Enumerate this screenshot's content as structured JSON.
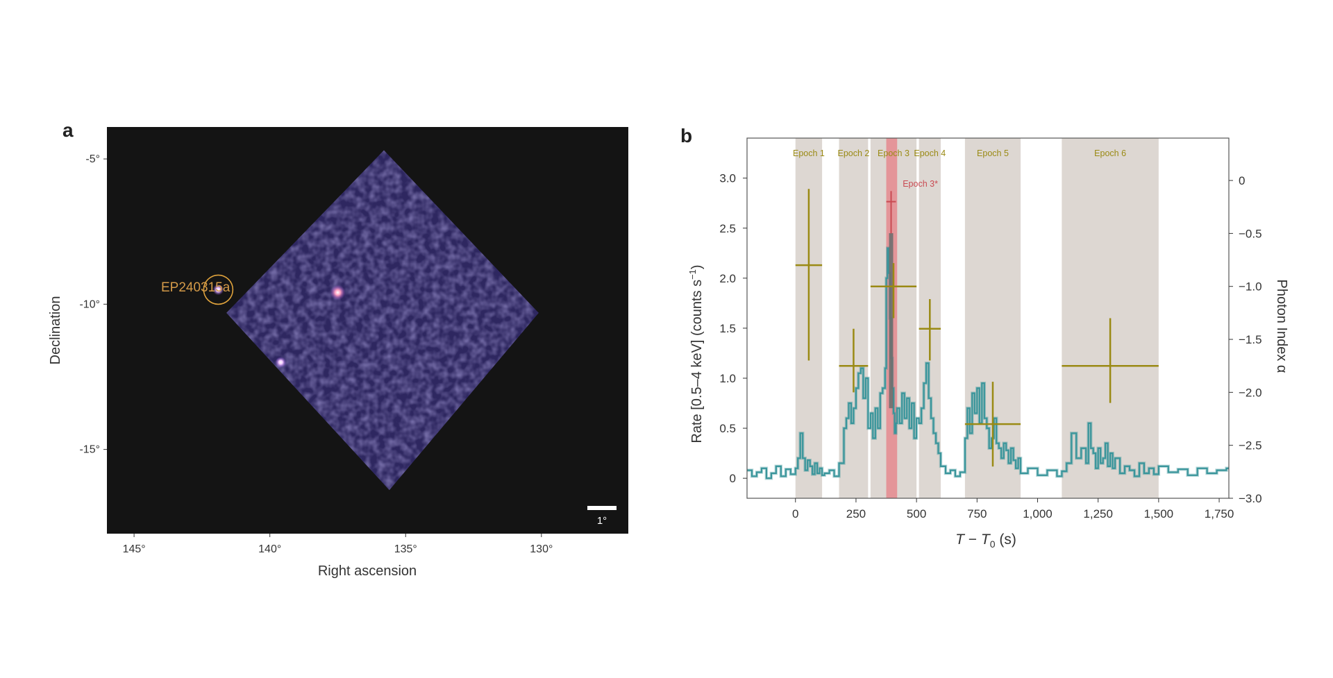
{
  "chart_data": [
    {
      "type": "heatmap",
      "panel": "a",
      "xlabel": "Right ascension",
      "ylabel": "Declination",
      "xlim": [
        146,
        126.8
      ],
      "ylim": [
        -17.9,
        -3.9
      ],
      "xticks": [
        145,
        140,
        135,
        130
      ],
      "xtick_labels": [
        "145°",
        "140°",
        "135°",
        "130°"
      ],
      "yticks": [
        -5,
        -10,
        -15
      ],
      "ytick_labels": [
        "-5°",
        "-10°",
        "-15°"
      ],
      "source_label": "EP240315a",
      "source_position": [
        141.9,
        -9.5
      ],
      "bright_sources": [
        [
          141.9,
          -9.5
        ],
        [
          137.5,
          -9.6
        ],
        [
          139.6,
          -12.0
        ]
      ],
      "scale_bar_label": "1°",
      "scale_bar_length_deg": 1,
      "field_corners": [
        [
          135.8,
          -4.7
        ],
        [
          130.1,
          -10.3
        ],
        [
          135.6,
          -16.4
        ],
        [
          141.6,
          -10.3
        ]
      ],
      "colors": {
        "background": "#141414",
        "field": "#2e2760",
        "source_circle": "#e0a33c",
        "source_label": "#d49a48"
      }
    },
    {
      "type": "line",
      "panel": "b",
      "xlabel": "T − T0 (s)",
      "xlabel_parts": {
        "T": "T",
        "minus": " − ",
        "T0": "T",
        "sub": "0",
        "unit": " (s)"
      },
      "ylabel": "Rate [0.5–4 keV] (counts s",
      "ylabel_exp": "−1",
      "ylabel_end": ")",
      "y2label": "Photon Index α",
      "xlim": [
        -200,
        1790
      ],
      "ylim": [
        -0.2,
        3.4
      ],
      "y2lim": [
        -3.0,
        0.4
      ],
      "xticks": [
        0,
        250,
        500,
        750,
        1000,
        1250,
        1500,
        1750
      ],
      "xtick_labels": [
        "0",
        "250",
        "500",
        "750",
        "1,000",
        "1,250",
        "1,500",
        "1,750"
      ],
      "yticks": [
        0,
        0.5,
        1.0,
        1.5,
        2.0,
        2.5,
        3.0
      ],
      "ytick_labels": [
        "0",
        "0.5",
        "1.0",
        "1.5",
        "2.0",
        "2.5",
        "3.0"
      ],
      "y2ticks": [
        0,
        -0.5,
        -1.0,
        -1.5,
        -2.0,
        -2.5,
        -3.0
      ],
      "y2tick_labels": [
        "0",
        "−0.5",
        "−1.0",
        "−1.5",
        "−2.0",
        "−2.5",
        "−3.0"
      ],
      "epochs": [
        {
          "label": "Epoch 1",
          "start": 0,
          "end": 110
        },
        {
          "label": "Epoch 2",
          "start": 180,
          "end": 300
        },
        {
          "label": "Epoch 3",
          "start": 310,
          "end": 500
        },
        {
          "label": "Epoch 4",
          "start": 510,
          "end": 600
        },
        {
          "label": "Epoch 5",
          "start": 700,
          "end": 930
        },
        {
          "label": "Epoch 6",
          "start": 1100,
          "end": 1500
        }
      ],
      "highlight_epoch": {
        "label": "Epoch 3*",
        "start": 375,
        "end": 420
      },
      "photon_index": [
        {
          "x": 55,
          "xerr": 55,
          "y": -0.8,
          "y_lo": -1.7,
          "y_hi": -0.08
        },
        {
          "x": 240,
          "xerr": 60,
          "y": -1.75,
          "y_lo": -2.0,
          "y_hi": -1.4
        },
        {
          "x": 405,
          "xerr": 95,
          "y": -1.0,
          "y_lo": -1.3,
          "y_hi": -0.78
        },
        {
          "x": 555,
          "xerr": 45,
          "y": -1.4,
          "y_lo": -1.7,
          "y_hi": -1.12
        },
        {
          "x": 815,
          "xerr": 115,
          "y": -2.3,
          "y_lo": -2.7,
          "y_hi": -1.9
        },
        {
          "x": 1300,
          "xerr": 200,
          "y": -1.75,
          "y_lo": -2.1,
          "y_hi": -1.3
        }
      ],
      "photon_index_3star": {
        "x": 395,
        "xerr": 20,
        "y": -0.2,
        "y_lo": -0.5,
        "y_hi": -0.1
      },
      "light_curve": {
        "x": [
          -200,
          -180,
          -160,
          -140,
          -120,
          -100,
          -80,
          -60,
          -40,
          -20,
          0,
          10,
          20,
          30,
          40,
          50,
          60,
          70,
          80,
          90,
          100,
          110,
          120,
          140,
          160,
          180,
          200,
          210,
          220,
          230,
          240,
          250,
          260,
          270,
          280,
          290,
          300,
          310,
          320,
          330,
          340,
          350,
          360,
          370,
          375,
          380,
          385,
          390,
          395,
          400,
          405,
          410,
          415,
          420,
          430,
          440,
          450,
          460,
          470,
          480,
          490,
          500,
          510,
          520,
          530,
          540,
          550,
          560,
          570,
          580,
          590,
          600,
          620,
          640,
          660,
          680,
          700,
          710,
          720,
          730,
          740,
          750,
          760,
          770,
          780,
          790,
          800,
          810,
          820,
          830,
          840,
          850,
          860,
          870,
          880,
          890,
          900,
          910,
          920,
          930,
          960,
          1000,
          1040,
          1080,
          1100,
          1120,
          1140,
          1160,
          1180,
          1200,
          1210,
          1220,
          1230,
          1240,
          1250,
          1260,
          1270,
          1280,
          1290,
          1300,
          1310,
          1320,
          1340,
          1360,
          1380,
          1400,
          1420,
          1440,
          1460,
          1480,
          1500,
          1540,
          1580,
          1620,
          1660,
          1700,
          1740,
          1780
        ],
        "y": [
          0.08,
          0.02,
          0.06,
          0.1,
          0.0,
          0.05,
          0.12,
          0.02,
          0.09,
          0.04,
          0.1,
          0.2,
          0.45,
          0.2,
          0.08,
          0.18,
          0.12,
          0.04,
          0.15,
          0.05,
          0.1,
          0.03,
          0.05,
          0.08,
          0.02,
          0.15,
          0.5,
          0.6,
          0.75,
          0.55,
          0.7,
          0.9,
          1.05,
          1.1,
          0.8,
          1.0,
          0.5,
          0.65,
          0.4,
          0.7,
          0.5,
          0.85,
          0.9,
          1.1,
          2.0,
          2.3,
          2.05,
          1.6,
          1.2,
          0.9,
          0.65,
          0.45,
          0.55,
          0.7,
          0.55,
          0.85,
          0.6,
          0.8,
          0.5,
          0.75,
          0.4,
          0.6,
          0.55,
          0.7,
          0.95,
          1.15,
          0.8,
          0.6,
          0.45,
          0.35,
          0.25,
          0.12,
          0.05,
          0.08,
          0.02,
          0.06,
          0.4,
          0.7,
          0.45,
          0.85,
          0.65,
          0.9,
          0.55,
          0.95,
          0.6,
          0.5,
          0.3,
          0.4,
          0.6,
          0.35,
          0.3,
          0.2,
          0.35,
          0.28,
          0.15,
          0.3,
          0.18,
          0.1,
          0.2,
          0.05,
          0.1,
          0.03,
          0.08,
          0.02,
          0.07,
          0.15,
          0.45,
          0.2,
          0.3,
          0.15,
          0.55,
          0.3,
          0.25,
          0.1,
          0.3,
          0.15,
          0.2,
          0.35,
          0.12,
          0.25,
          0.1,
          0.2,
          0.05,
          0.12,
          0.08,
          0.02,
          0.15,
          0.05,
          0.1,
          0.04,
          0.12,
          0.06,
          0.09,
          0.03,
          0.1,
          0.05,
          0.08,
          0.1
        ]
      },
      "colors": {
        "epoch_band": "#ddd7d2",
        "highlight_band": "#e58a8f",
        "photon_index": "#9a8a14",
        "photon_index_3star": "#c94a52",
        "light_curve": "#3f9aa0",
        "light_curve_fill": "#2f8c92"
      }
    }
  ],
  "figure": {
    "panel_a_letter": "a",
    "panel_b_letter": "b"
  }
}
